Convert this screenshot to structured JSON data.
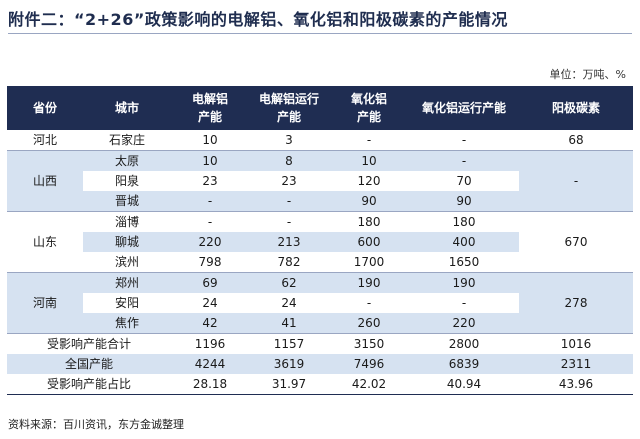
{
  "title": "附件二：“2+26”政策影响的电解铝、氧化铝和阳极碳素的产能情况",
  "unit": "单位：万吨、%",
  "headers": {
    "province": "省份",
    "city": "城市",
    "electrolytic_capacity": [
      "电解铝",
      "产能"
    ],
    "electrolytic_running": [
      "电解铝运行",
      "产能"
    ],
    "alumina_capacity": [
      "氧化铝",
      "产能"
    ],
    "alumina_running": "氧化铝运行产能",
    "anode_carbon": "阳极碳素"
  },
  "groups": [
    {
      "province": "河北",
      "shade": "white",
      "anode": "68",
      "rows": [
        {
          "city": "石家庄",
          "e_cap": "10",
          "e_run": "3",
          "a_cap": "-",
          "a_run": "-"
        }
      ]
    },
    {
      "province": "山西",
      "shade": "blue",
      "anode": "-",
      "rows": [
        {
          "city": "太原",
          "e_cap": "10",
          "e_run": "8",
          "a_cap": "10",
          "a_run": "-"
        },
        {
          "city": "阳泉",
          "e_cap": "23",
          "e_run": "23",
          "a_cap": "120",
          "a_run": "70"
        },
        {
          "city": "晋城",
          "e_cap": "-",
          "e_run": "-",
          "a_cap": "90",
          "a_run": "90"
        }
      ]
    },
    {
      "province": "山东",
      "shade": "white",
      "anode": "670",
      "rows": [
        {
          "city": "淄博",
          "e_cap": "-",
          "e_run": "-",
          "a_cap": "180",
          "a_run": "180"
        },
        {
          "city": "聊城",
          "e_cap": "220",
          "e_run": "213",
          "a_cap": "600",
          "a_run": "400"
        },
        {
          "city": "滨州",
          "e_cap": "798",
          "e_run": "782",
          "a_cap": "1700",
          "a_run": "1650"
        }
      ]
    },
    {
      "province": "河南",
      "shade": "blue",
      "anode": "278",
      "rows": [
        {
          "city": "郑州",
          "e_cap": "69",
          "e_run": "62",
          "a_cap": "190",
          "a_run": "190"
        },
        {
          "city": "安阳",
          "e_cap": "24",
          "e_run": "24",
          "a_cap": "-",
          "a_run": "-"
        },
        {
          "city": "焦作",
          "e_cap": "42",
          "e_run": "41",
          "a_cap": "260",
          "a_run": "220"
        }
      ]
    }
  ],
  "summary": [
    {
      "label": "受影响产能合计",
      "e_cap": "1196",
      "e_run": "1157",
      "a_cap": "3150",
      "a_run": "2800",
      "anode": "1016"
    },
    {
      "label": "全国产能",
      "e_cap": "4244",
      "e_run": "3619",
      "a_cap": "7496",
      "a_run": "6839",
      "anode": "2311"
    },
    {
      "label": "受影响产能占比",
      "e_cap": "28.18",
      "e_run": "31.97",
      "a_cap": "42.02",
      "a_run": "40.94",
      "anode": "43.96"
    }
  ],
  "source": "资料来源：百川资讯，东方金诚整理"
}
